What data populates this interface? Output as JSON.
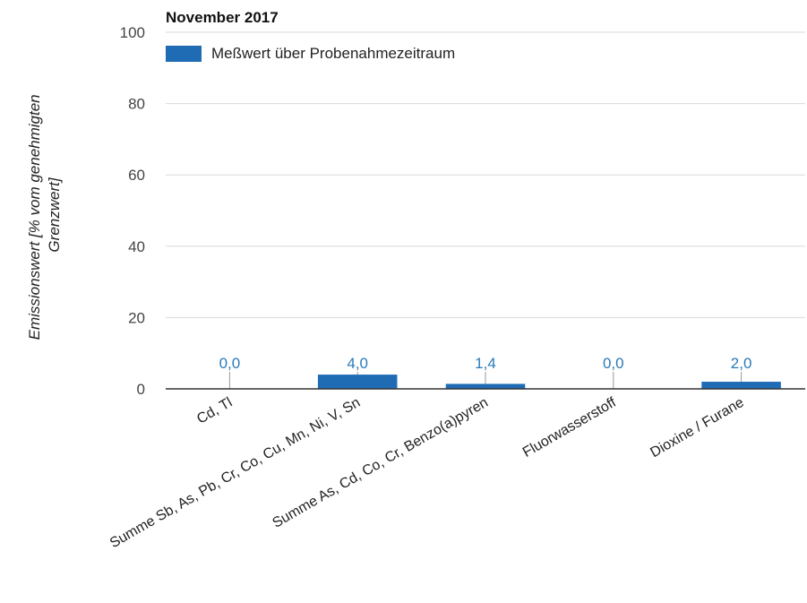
{
  "chart_data": {
    "type": "bar",
    "title": "November 2017",
    "ylabel": "Emissionswert [% vom genehmigten Grenzwert]",
    "ylabel_lines": [
      "Emissionswert [% vom genehmigten",
      "Grenzwert]"
    ],
    "xlabel": "",
    "ylim": [
      0,
      100
    ],
    "yticks": [
      "0",
      "20",
      "40",
      "60",
      "80",
      "100"
    ],
    "grid": true,
    "legend_position": "top-left",
    "categories": [
      "Cd, Tl",
      "Summe Sb, As, Pb, Cr, Co, Cu, Mn, Ni, V, Sn",
      "Summe As, Cd, Co, Cr, Benzo(a)pyren",
      "Fluorwasserstoff",
      "Dioxine / Furane"
    ],
    "series": [
      {
        "name": "Meßwert über Probenahmezeitraum",
        "color": "#1f6cb5",
        "values": [
          0.0,
          4.0,
          1.4,
          0.0,
          2.0
        ],
        "labels": [
          "0,0",
          "4,0",
          "1,4",
          "0,0",
          "2,0"
        ]
      }
    ],
    "label_color": "#2a7ab9"
  }
}
